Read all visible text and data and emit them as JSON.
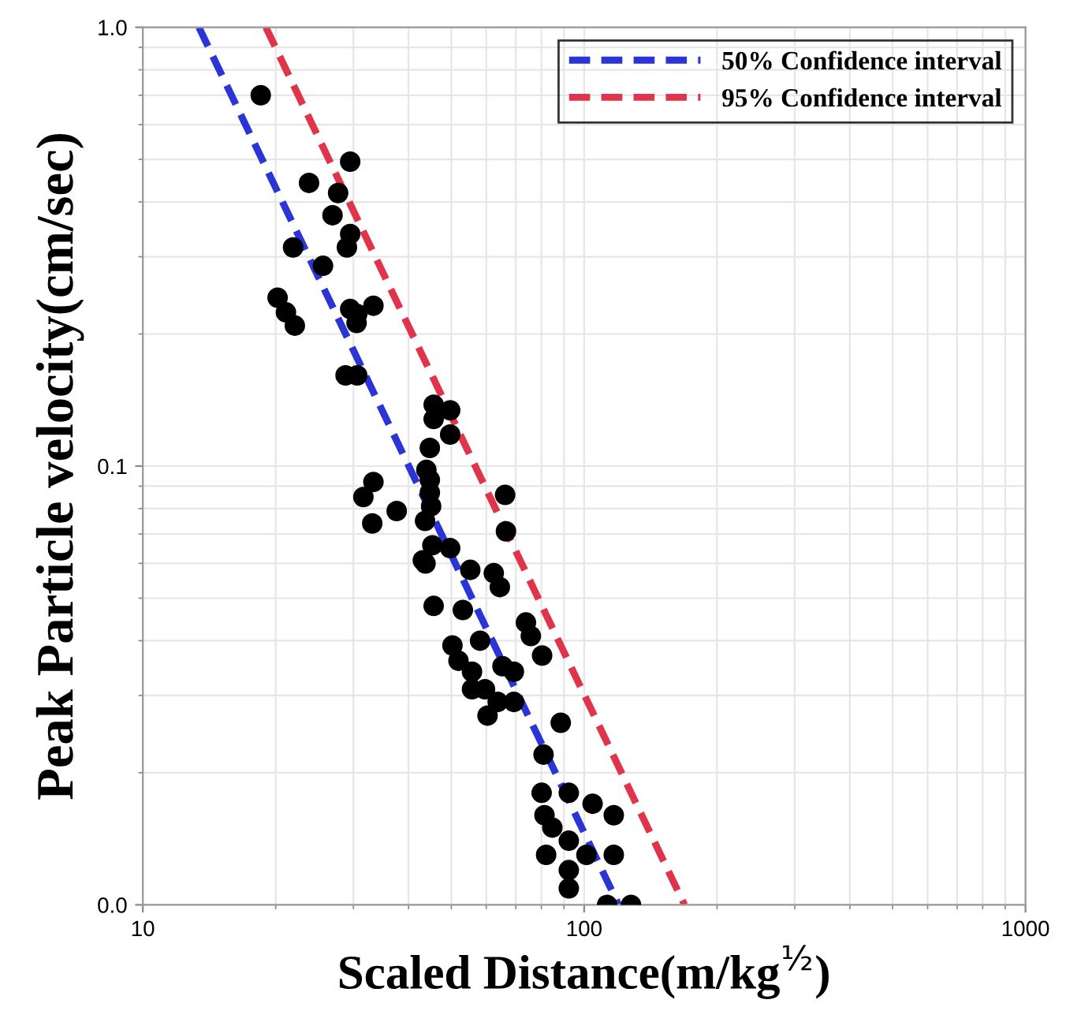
{
  "chart_data": {
    "type": "scatter",
    "xlabel": "Scaled Distance(m/kg$^{½}$)",
    "ylabel": "Peak Particle velocity(cm/sec)",
    "log": "xy",
    "grid": true,
    "legend": "top right",
    "xlim": [
      10,
      1000
    ],
    "xticks": [
      10,
      100,
      1000
    ],
    "ylim": [
      0.01,
      1
    ],
    "yticks": [
      {
        "value": 0.01,
        "label": "0.0"
      },
      0.1,
      {
        "value": 1,
        "label": "1.0"
      }
    ],
    "series": [
      {
        "color": "#000000",
        "marker": "circle",
        "x": [
          18.5,
          29.5,
          23.8,
          27.7,
          26.9,
          29.5,
          29.0,
          21.9,
          25.6,
          20.2,
          21.1,
          22.1,
          29.5,
          30.6,
          30.5,
          33.3,
          28.8,
          30.6,
          45.6,
          49.7,
          45.6,
          49.7,
          44.7,
          43.9,
          44.7,
          44.7,
          31.6,
          33.3,
          66.2,
          45.0,
          37.6,
          43.6,
          33.1,
          66.5,
          45.3,
          49.7,
          43.1,
          43.7,
          55.2,
          62.4,
          64.4,
          45.6,
          53.1,
          73.8,
          75.7,
          50.3,
          58.1,
          80.3,
          51.9,
          65.3,
          69.3,
          55.7,
          55.7,
          59.6,
          63.7,
          69.3,
          60.4,
          88.5,
          80.9,
          80.1,
          92.3,
          104.5,
          116.7,
          81.3,
          84.7,
          92.3,
          82.0,
          101.2,
          116.7,
          92.3,
          92.3,
          112.7,
          127.7
        ],
        "values": [
          0.7,
          0.494,
          0.442,
          0.419,
          0.373,
          0.338,
          0.315,
          0.315,
          0.286,
          0.242,
          0.224,
          0.209,
          0.228,
          0.222,
          0.212,
          0.232,
          0.161,
          0.161,
          0.138,
          0.134,
          0.128,
          0.118,
          0.11,
          0.098,
          0.093,
          0.087,
          0.085,
          0.092,
          0.086,
          0.081,
          0.079,
          0.075,
          0.074,
          0.071,
          0.066,
          0.065,
          0.061,
          0.06,
          0.058,
          0.057,
          0.053,
          0.048,
          0.047,
          0.044,
          0.041,
          0.039,
          0.04,
          0.037,
          0.036,
          0.035,
          0.034,
          0.034,
          0.031,
          0.031,
          0.029,
          0.029,
          0.027,
          0.026,
          0.022,
          0.018,
          0.018,
          0.017,
          0.016,
          0.016,
          0.015,
          0.014,
          0.013,
          0.013,
          0.013,
          0.012,
          0.0109,
          0.01,
          0.01
        ]
      },
      {
        "type": "line",
        "name": "50% Confidence interval",
        "color": "#2b35d6",
        "line_style": "dashed",
        "x": [
          13.4,
          119.7
        ],
        "values": [
          1.0,
          0.01
        ]
      },
      {
        "type": "line",
        "name": "95% Confidence interval",
        "color": "#e0344a",
        "line_style": "dashed",
        "x": [
          19.0,
          168.8
        ],
        "values": [
          1.0,
          0.01
        ]
      }
    ]
  }
}
